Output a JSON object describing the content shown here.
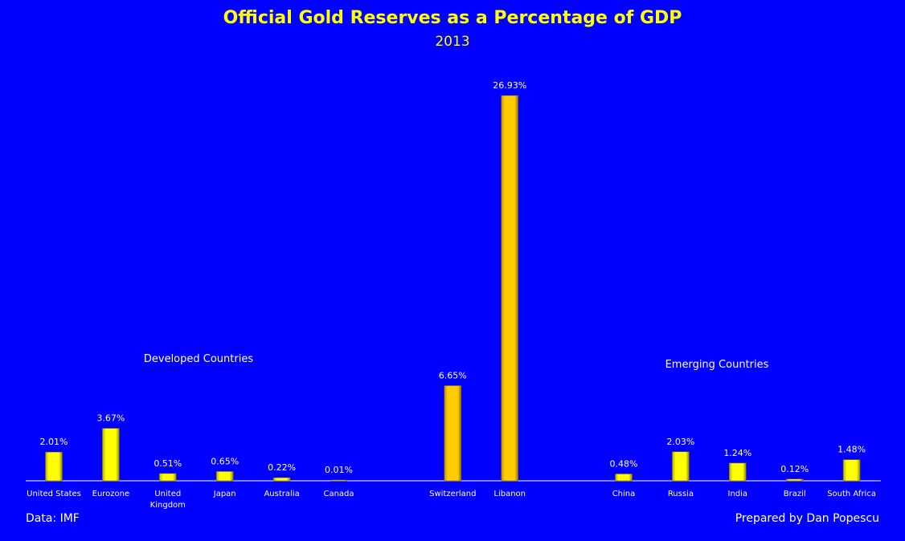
{
  "chart_data": {
    "type": "bar",
    "title": "Official Gold Reserves as a Percentage of GDP",
    "subtitle": "2013",
    "categories": [
      "United States",
      "Eurozone",
      "United Kingdom",
      "Japan",
      "Australia",
      "Canada",
      "",
      "Switzerland",
      "Libanon",
      "",
      "China",
      "Russia",
      "India",
      "Brazil",
      "South Africa"
    ],
    "values": [
      2.01,
      3.67,
      0.51,
      0.65,
      0.22,
      0.01,
      null,
      6.65,
      26.93,
      null,
      0.48,
      2.03,
      1.24,
      0.12,
      1.48
    ],
    "data_labels": [
      "2.01%",
      "3.67%",
      "0.51%",
      "0.65%",
      "0.22%",
      "0.01%",
      "",
      "6.65%",
      "26.93%",
      "",
      "0.48%",
      "2.03%",
      "1.24%",
      "0.12%",
      "1.48%"
    ],
    "bar_colors": [
      "#ffff00",
      "#ffff00",
      "#ffff00",
      "#ffff00",
      "#ffff00",
      "#ffff00",
      "",
      "#ffcc00",
      "#ffcc00",
      "",
      "#ffff00",
      "#ffff00",
      "#ffff00",
      "#ffff00",
      "#ffff00"
    ],
    "annotations": [
      "Developed Countries",
      "Emerging Countries"
    ],
    "ylim": [
      0,
      27
    ],
    "grid": false,
    "y_axis_visible": false,
    "legend": "none",
    "background": "#0000ff",
    "xlabel": "",
    "ylabel": ""
  },
  "footer": {
    "source": "Data: IMF",
    "credit": "Prepared by Dan Popescu"
  }
}
